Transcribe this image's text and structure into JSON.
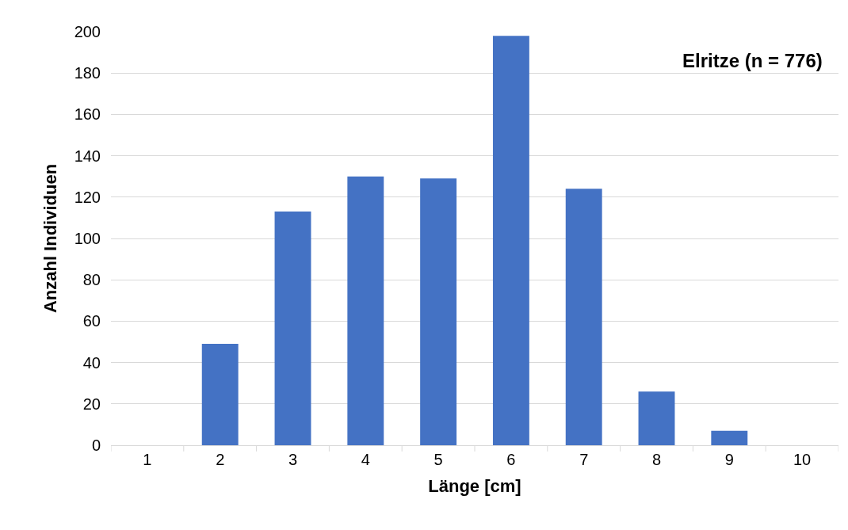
{
  "chart_data": {
    "type": "bar",
    "xlabel": "Länge [cm]",
    "ylabel": "Anzahl Individuen",
    "annotations": [
      "Elritze (n = 776)"
    ],
    "categories": [
      "1",
      "2",
      "3",
      "4",
      "5",
      "6",
      "7",
      "8",
      "9",
      "10"
    ],
    "values": [
      0,
      49,
      113,
      130,
      129,
      198,
      124,
      26,
      7,
      0
    ],
    "color": "#4472c4",
    "ylim": [
      0,
      200
    ],
    "yticks": [
      0,
      20,
      40,
      60,
      80,
      100,
      120,
      140,
      160,
      180,
      200
    ],
    "grid": "y"
  }
}
